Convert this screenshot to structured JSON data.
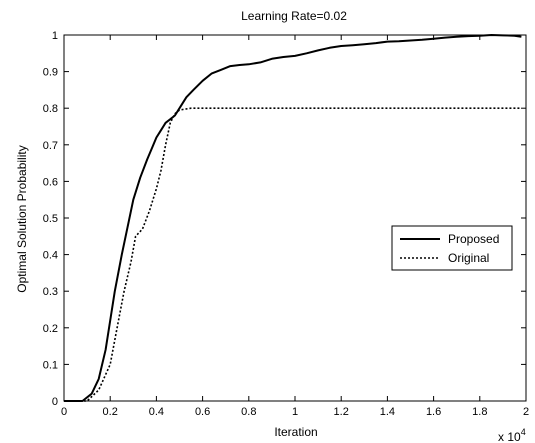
{
  "chart_data": {
    "type": "line",
    "title": "Learning Rate=0.02",
    "xlabel": "Iteration",
    "ylabel": "Optimal Solution Probability",
    "x_multiplier_label": "x 10",
    "x_multiplier_exp": "4",
    "xlim": [
      0,
      2
    ],
    "ylim": [
      0,
      1
    ],
    "x_ticks": [
      "0",
      "0.2",
      "0.4",
      "0.6",
      "0.8",
      "1",
      "1.2",
      "1.4",
      "1.6",
      "1.8",
      "2"
    ],
    "y_ticks": [
      "0",
      "0.1",
      "0.2",
      "0.3",
      "0.4",
      "0.5",
      "0.6",
      "0.7",
      "0.8",
      "0.9",
      "1"
    ],
    "grid": false,
    "legend_position": "center-right",
    "series": [
      {
        "name": "Proposed",
        "style": "solid",
        "color": "#000000",
        "x": [
          0,
          0.08,
          0.12,
          0.15,
          0.18,
          0.2,
          0.22,
          0.25,
          0.28,
          0.3,
          0.33,
          0.36,
          0.38,
          0.4,
          0.42,
          0.44,
          0.46,
          0.48,
          0.5,
          0.53,
          0.56,
          0.6,
          0.64,
          0.68,
          0.72,
          0.76,
          0.8,
          0.85,
          0.9,
          0.95,
          1.0,
          1.05,
          1.1,
          1.15,
          1.2,
          1.25,
          1.3,
          1.35,
          1.4,
          1.45,
          1.5,
          1.55,
          1.6,
          1.65,
          1.7,
          1.75,
          1.8,
          1.85,
          1.9,
          1.95,
          1.98
        ],
        "y": [
          0,
          0,
          0.02,
          0.06,
          0.14,
          0.22,
          0.3,
          0.4,
          0.49,
          0.55,
          0.61,
          0.66,
          0.69,
          0.72,
          0.74,
          0.76,
          0.77,
          0.78,
          0.8,
          0.83,
          0.85,
          0.875,
          0.895,
          0.905,
          0.915,
          0.918,
          0.92,
          0.925,
          0.935,
          0.94,
          0.943,
          0.95,
          0.958,
          0.965,
          0.97,
          0.972,
          0.975,
          0.978,
          0.982,
          0.983,
          0.985,
          0.987,
          0.99,
          0.993,
          0.995,
          0.997,
          0.998,
          1.0,
          0.999,
          0.998,
          0.995
        ]
      },
      {
        "name": "Original",
        "style": "dotted",
        "color": "#000000",
        "x": [
          0,
          0.1,
          0.15,
          0.2,
          0.23,
          0.26,
          0.29,
          0.31,
          0.34,
          0.37,
          0.4,
          0.42,
          0.44,
          0.46,
          0.48,
          0.5,
          0.55,
          0.6,
          0.7,
          0.8,
          1.0,
          1.2,
          1.4,
          1.6,
          1.8,
          1.98
        ],
        "y": [
          0,
          0,
          0.03,
          0.1,
          0.2,
          0.3,
          0.38,
          0.45,
          0.47,
          0.52,
          0.58,
          0.63,
          0.7,
          0.76,
          0.785,
          0.795,
          0.8,
          0.8,
          0.8,
          0.8,
          0.8,
          0.8,
          0.8,
          0.8,
          0.8,
          0.8
        ]
      }
    ]
  }
}
